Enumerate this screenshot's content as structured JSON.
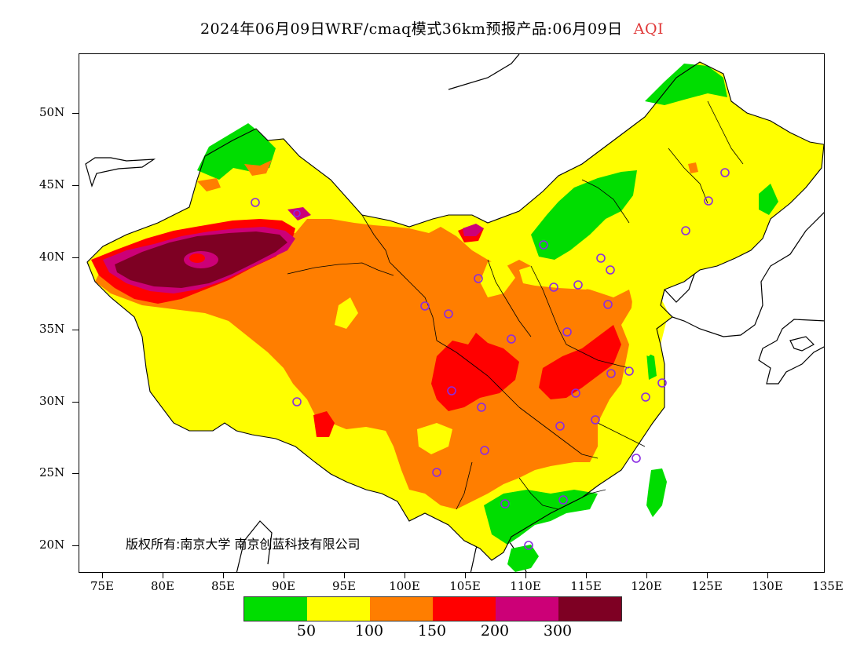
{
  "title": {
    "main": "2024年06月09日WRF/cmaq模式36km预报产品:06月09日",
    "variable": "AQI"
  },
  "axes": {
    "y_labels": [
      "50N",
      "45N",
      "40N",
      "35N",
      "30N",
      "25N",
      "20N"
    ],
    "x_labels": [
      "75E",
      "80E",
      "85E",
      "90E",
      "95E",
      "100E",
      "105E",
      "110E",
      "115E",
      "120E",
      "125E",
      "130E",
      "135E"
    ]
  },
  "copyright": "版权所有:南京大学 南京创蓝科技有限公司",
  "legend": {
    "colors": [
      "#00dd00",
      "#ffff00",
      "#ff7e00",
      "#ff0000",
      "#cc0077",
      "#7e0023"
    ],
    "labels": [
      "50",
      "100",
      "150",
      "200",
      "300"
    ]
  },
  "colors": {
    "good": "#00dd00",
    "moderate": "#ffff00",
    "unhealthy_sensitive": "#ff7e00",
    "unhealthy": "#ff0000",
    "very_unhealthy": "#cc0077",
    "hazardous": "#7e0023",
    "station_marker": "#8a2be2"
  }
}
